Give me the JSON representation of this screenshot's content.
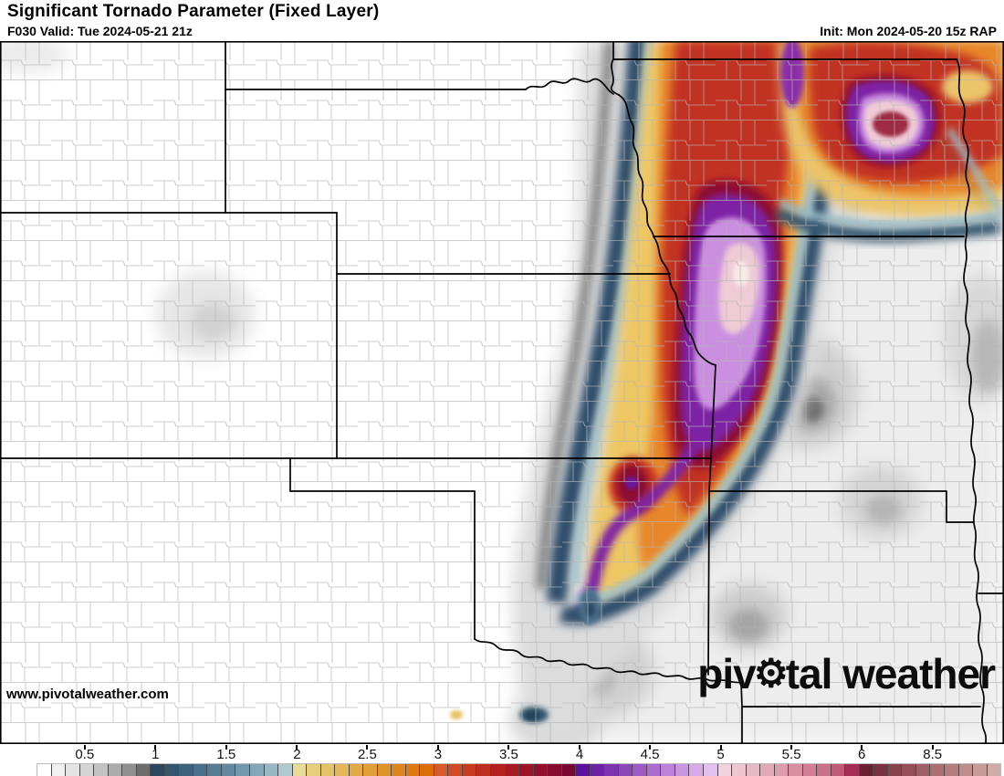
{
  "header": {
    "title": "Significant Tornado Parameter (Fixed Layer)",
    "valid": "F030 Valid: Tue 2024-05-21 21z",
    "init": "Init: Mon 2024-05-20 15z RAP"
  },
  "branding": {
    "url": "www.pivotalweather.com",
    "logo_left": "piv",
    "logo_right": "tal weather",
    "gear_icon": "⚙"
  },
  "colorbar": {
    "tick_labels": [
      "0.5",
      "1",
      "1.5",
      "2",
      "2.5",
      "3",
      "3.5",
      "4",
      "4.5",
      "5",
      "5.5",
      "6",
      "8.5"
    ],
    "tick_percents": [
      5.0,
      12.35,
      19.7,
      27.05,
      34.35,
      41.7,
      49.05,
      56.4,
      63.7,
      71.05,
      78.4,
      85.7,
      93.05
    ],
    "cells": [
      "#ffffff",
      "#f1f1f1",
      "#e3e3e3",
      "#d4d4d4",
      "#c2c2c2",
      "#ababab",
      "#909090",
      "#6d6d6d",
      "#2b4860",
      "#34556e",
      "#3e627c",
      "#49708a",
      "#557d96",
      "#6389a1",
      "#7398ad",
      "#85a8b8",
      "#99b8c4",
      "#afc9d0",
      "#e7dc95",
      "#e5cf7d",
      "#e4c368",
      "#e3b656",
      "#e2aa46",
      "#e19e37",
      "#e0922a",
      "#df851d",
      "#de7911",
      "#dd6d06",
      "#d75b2a",
      "#d04a23",
      "#c83b1f",
      "#bf2d1c",
      "#b5221e",
      "#aa1922",
      "#9f1326",
      "#930e2a",
      "#860a2e",
      "#780731",
      "#5e0f9d",
      "#6e20a6",
      "#7e32b0",
      "#8e45ba",
      "#9e59c4",
      "#ad6dce",
      "#bc81d8",
      "#ca95e1",
      "#d8aaea",
      "#e5bff2",
      "#f0d3dc",
      "#ecc6d1",
      "#e7b8c5",
      "#e2aab9",
      "#dd9cad",
      "#d88ea1",
      "#d27f95",
      "#cc7089",
      "#c05a77",
      "#a42e55",
      "#6a2032",
      "#79313f",
      "#87424c",
      "#944f58",
      "#a05f64",
      "#ab6f71",
      "#b57e7e",
      "#bf8d8b",
      "#c89c98",
      "#d1aba5"
    ]
  },
  "map_style": {
    "county_line_color": "#b5b5b5",
    "state_line_color": "#000000",
    "land_color": "#ffffff"
  }
}
